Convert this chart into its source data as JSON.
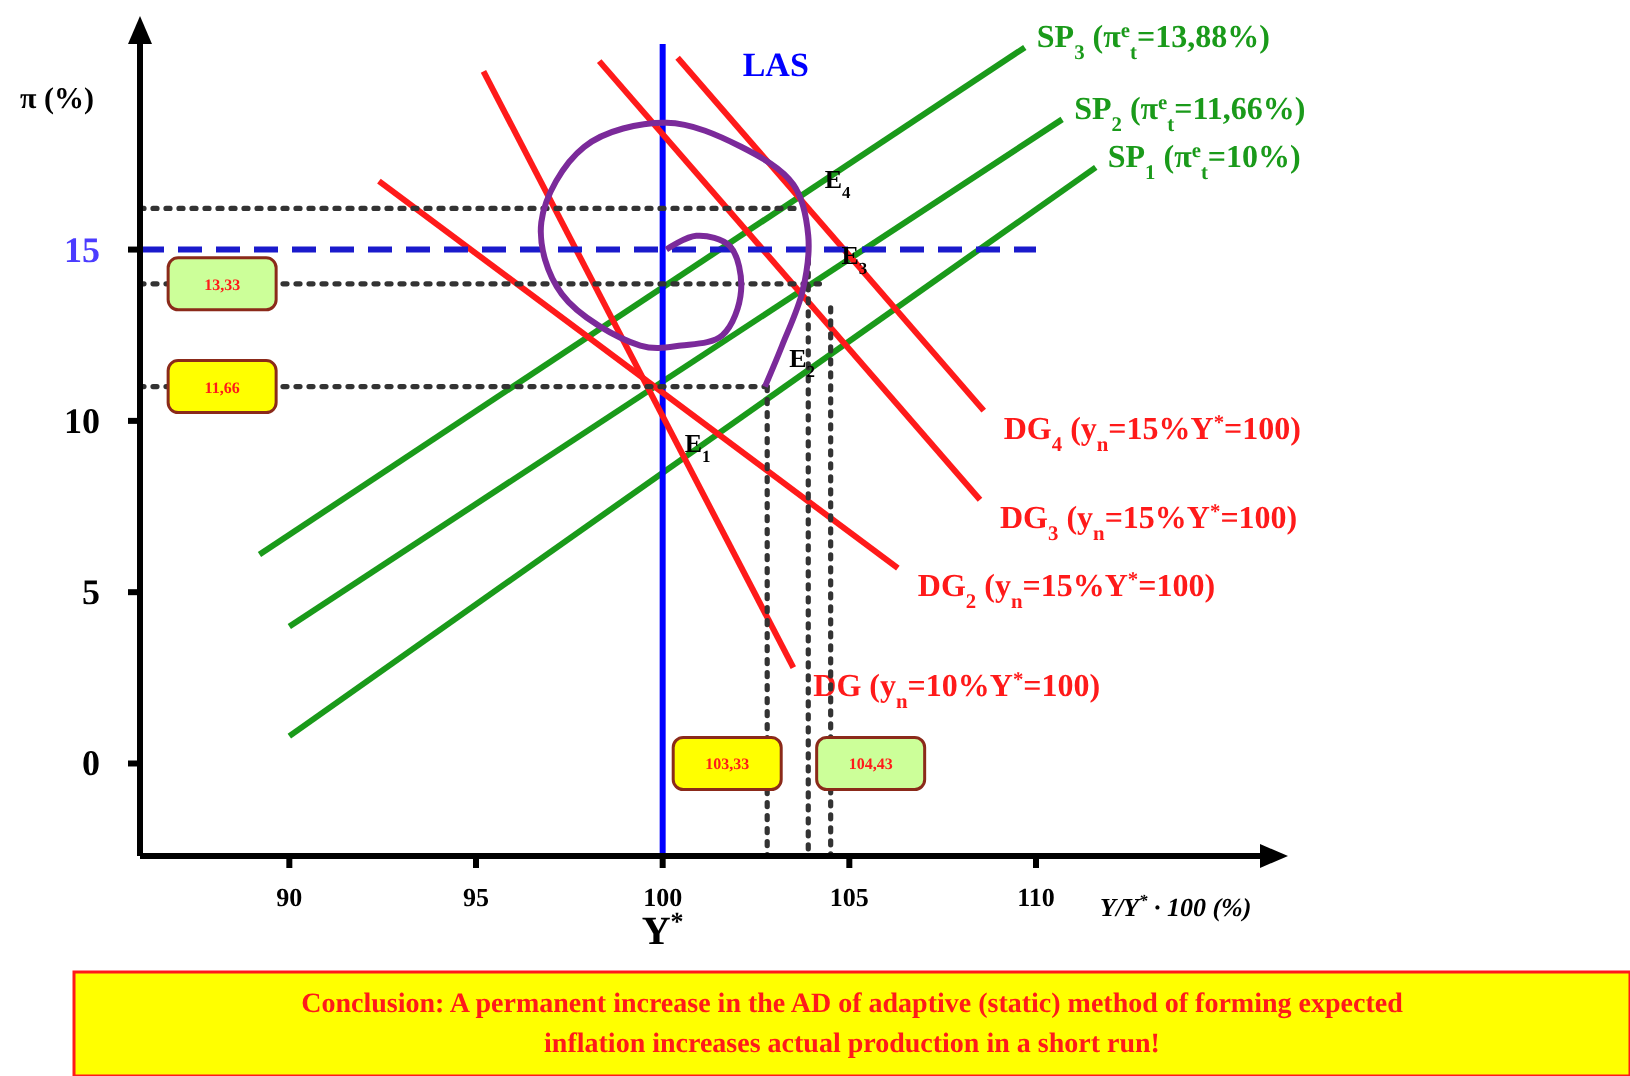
{
  "chart_data": {
    "type": "line",
    "xlabel": "Y/Y$^{*}$ · 100 (%)",
    "ylabel": "π (%)",
    "xlim": [
      86,
      116
    ],
    "ylim": [
      -2.7,
      21
    ],
    "xticks": [
      90,
      95,
      100,
      105,
      110
    ],
    "yticks": [
      0,
      5,
      10,
      15
    ],
    "grid": false,
    "legend": false,
    "series": [
      {
        "name": "SP$_{1}$ (π$^{e}$$_{t}$=10%)",
        "color": "#1a9a1a",
        "x": [
          90,
          111.6
        ],
        "values": [
          0.8,
          17.4
        ]
      },
      {
        "name": "SP$_{2}$ (π$^{e}$$_{t}$=11,66%)",
        "color": "#1a9a1a",
        "x": [
          90,
          110.7
        ],
        "values": [
          4.0,
          18.8
        ]
      },
      {
        "name": "SP$_{3}$ (π$^{e}$$_{t}$=13,88%)",
        "color": "#1a9a1a",
        "x": [
          89.2,
          109.7
        ],
        "values": [
          6.1,
          20.9
        ]
      },
      {
        "name": "LAS",
        "color": "#0000ff",
        "x": [
          100,
          100
        ],
        "values": [
          -2.7,
          21
        ]
      },
      {
        "name": "DG (y$_{n}$=10%Y$^{*}$=100)",
        "color": "#ff1a1a",
        "x": [
          95.2,
          103.5
        ],
        "values": [
          20.2,
          2.8
        ]
      },
      {
        "name": "DG$_{2}$ (y$_{n}$=15%Y$^{*}$=100)",
        "color": "#ff1a1a",
        "x": [
          92.4,
          106.3
        ],
        "values": [
          17.0,
          5.7
        ]
      },
      {
        "name": "DG$_{3}$ (y$_{n}$=15%Y$^{*}$=100)",
        "color": "#ff1a1a",
        "x": [
          98.3,
          108.5
        ],
        "values": [
          20.5,
          7.7
        ]
      },
      {
        "name": "DG$_{4}$ (y$_{n}$=15%Y$^{*}$=100)",
        "color": "#ff1a1a",
        "x": [
          100.4,
          108.6
        ],
        "values": [
          20.6,
          10.3
        ]
      },
      {
        "color": "#1a1acc",
        "line_style": "dashed",
        "x": [
          86,
          110
        ],
        "values": [
          15,
          15
        ]
      },
      {
        "color": "#333333",
        "line_style": "dotted",
        "x": [
          86,
          103.75
        ],
        "values": [
          16.2,
          16.2
        ]
      },
      {
        "color": "#333333",
        "line_style": "dotted",
        "x": [
          86,
          104.2
        ],
        "values": [
          14.0,
          14.0
        ]
      },
      {
        "color": "#333333",
        "line_style": "dotted",
        "x": [
          86,
          102.8
        ],
        "values": [
          11.0,
          11.0
        ]
      },
      {
        "color": "#333333",
        "line_style": "dotted",
        "x": [
          102.8,
          102.8
        ],
        "values": [
          11.0,
          -2.7
        ]
      },
      {
        "color": "#333333",
        "line_style": "dotted",
        "x": [
          103.9,
          103.9
        ],
        "values": [
          14.7,
          -2.7
        ]
      },
      {
        "color": "#333333",
        "line_style": "dotted",
        "x": [
          104.5,
          104.5
        ],
        "values": [
          13.3,
          -2.7
        ]
      },
      {
        "color": "#7b2a9a",
        "x": [
          102.74,
          103.2,
          103.75,
          103.9,
          103.5,
          102.1,
          100.1,
          97.9,
          96.75,
          97.3,
          99.4,
          100.5,
          101.6,
          102.1,
          101.8,
          100.9,
          100.1
        ],
        "values": [
          11.0,
          12.2,
          13.8,
          15.4,
          16.9,
          18.0,
          18.7,
          18.0,
          15.8,
          13.7,
          12.2,
          12.2,
          12.5,
          13.8,
          15.1,
          15.4,
          15.0
        ]
      }
    ],
    "annotations": [
      {
        "text": "E$_{1}$",
        "x": 100,
        "y": 8.5
      },
      {
        "text": "E$_{2}$",
        "x": 102.8,
        "y": 11.0
      },
      {
        "text": "E$_{3}$",
        "x": 104.2,
        "y": 14.0
      },
      {
        "text": "E$_{4}$",
        "x": 103.75,
        "y": 16.2
      },
      {
        "text": "13,33",
        "x": 88.2,
        "y": 14.0
      },
      {
        "text": "11,66",
        "x": 88.2,
        "y": 11.0
      },
      {
        "text": "103,33",
        "x": 102.8,
        "y": 0
      },
      {
        "text": "104,43",
        "x": 104.5,
        "y": 0
      },
      "Y$^{*}$",
      "Conclusion: A permanent increase in the AD of adaptive (static) method of forming expected inflation increases actual production in a short run!"
    ]
  }
}
